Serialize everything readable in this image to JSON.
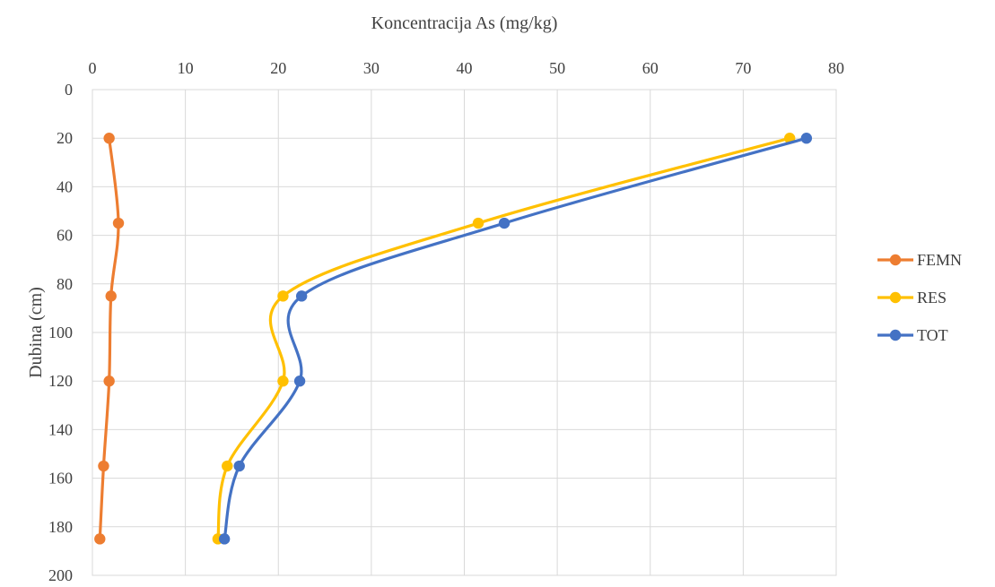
{
  "chart_data": {
    "type": "line",
    "title": "",
    "xlabel": "Koncentracija As (mg/kg)",
    "ylabel": "Dubina (cm)",
    "xlim": [
      0,
      80
    ],
    "ylim": [
      0,
      200
    ],
    "x_ticks": [
      0,
      10,
      20,
      30,
      40,
      50,
      60,
      70,
      80
    ],
    "y_ticks": [
      0,
      20,
      40,
      60,
      80,
      100,
      120,
      140,
      160,
      180,
      200
    ],
    "x_axis_position": "top",
    "y_axis_inverted": true,
    "grid": true,
    "smooth": true,
    "legend_position": "right",
    "series": [
      {
        "name": "FEMN",
        "color": "#ED7D31",
        "points": [
          [
            1.8,
            20
          ],
          [
            2.8,
            55
          ],
          [
            2.0,
            85
          ],
          [
            1.8,
            120
          ],
          [
            1.2,
            155
          ],
          [
            0.8,
            185
          ]
        ]
      },
      {
        "name": "RES",
        "color": "#FFC000",
        "points": [
          [
            75.0,
            20
          ],
          [
            41.5,
            55
          ],
          [
            20.5,
            85
          ],
          [
            20.5,
            120
          ],
          [
            14.5,
            155
          ],
          [
            13.5,
            185
          ]
        ]
      },
      {
        "name": "TOT",
        "color": "#4472C4",
        "points": [
          [
            76.8,
            20
          ],
          [
            44.3,
            55
          ],
          [
            22.5,
            85
          ],
          [
            22.3,
            120
          ],
          [
            15.8,
            155
          ],
          [
            14.2,
            185
          ]
        ]
      }
    ]
  }
}
